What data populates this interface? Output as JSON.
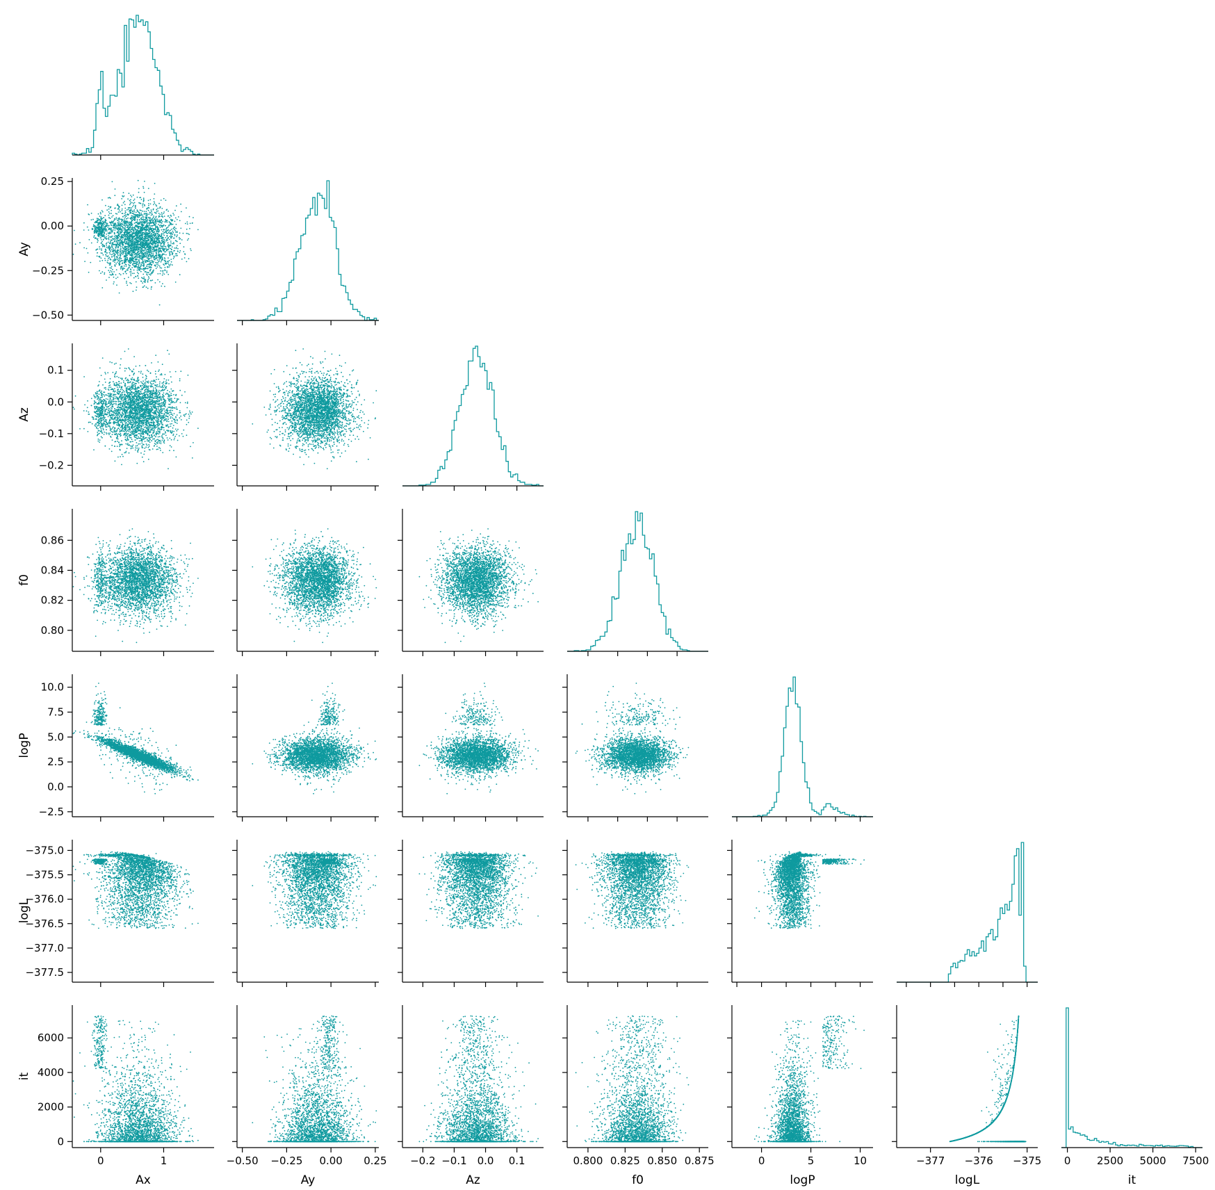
{
  "colors": {
    "accent": "#0f9a9f",
    "axis": "#000000",
    "background": "#ffffff"
  },
  "chart_data": {
    "type": "scatter",
    "layout": "corner",
    "title": "",
    "grid": false,
    "legend": "none",
    "variables": [
      {
        "name": "Ax",
        "ticks": [
          0,
          1
        ],
        "tick_labels": [
          "0",
          "1"
        ],
        "range": [
          -0.45,
          1.8
        ]
      },
      {
        "name": "Ay",
        "ticks": [
          -0.5,
          -0.25,
          0,
          0.25
        ],
        "tick_labels": [
          "−0.50",
          "−0.25",
          "0.00",
          "0.25"
        ],
        "range": [
          -0.53,
          0.27
        ]
      },
      {
        "name": "Az",
        "ticks": [
          -0.2,
          -0.1,
          0,
          0.1
        ],
        "tick_labels": [
          "−0.2",
          "−0.1",
          "0.0",
          "0.1"
        ],
        "range": [
          -0.265,
          0.185
        ]
      },
      {
        "name": "f0",
        "ticks": [
          0.8,
          0.82,
          0.84,
          0.86
        ],
        "tick_labels": [
          "0.80",
          "0.82",
          "0.84",
          "0.86"
        ],
        "range": [
          0.786,
          0.881
        ]
      },
      {
        "name": "logP",
        "ticks": [
          -2.5,
          0,
          2.5,
          5,
          7.5,
          10
        ],
        "tick_labels": [
          "−2.5",
          "0.0",
          "2.5",
          "5.0",
          "7.5",
          "10.0"
        ],
        "range": [
          -3.0,
          11.3
        ]
      },
      {
        "name": "logL",
        "ticks": [
          -377.5,
          -377,
          -376.5,
          -376,
          -375.5,
          -375
        ],
        "tick_labels": [
          "−377.5",
          "−377.0",
          "−376.5",
          "−376.0",
          "−375.5",
          "−375.0"
        ],
        "range": [
          -377.7,
          -374.78
        ]
      },
      {
        "name": "it",
        "ticks": [
          0,
          2000,
          4000,
          6000
        ],
        "tick_labels": [
          "0",
          "2000",
          "4000",
          "6000"
        ],
        "range": [
          -350,
          7900
        ]
      }
    ],
    "bottom_tick_overrides": {
      "f0": {
        "ticks": [
          0.8,
          0.825,
          0.85,
          0.875
        ],
        "tick_labels": [
          "0.800",
          "0.825",
          "0.850",
          "0.875"
        ]
      },
      "logP": {
        "ticks": [
          0,
          5,
          10
        ],
        "tick_labels": [
          "0",
          "5",
          "10"
        ]
      },
      "logL": {
        "ticks": [
          -377,
          -376,
          -375
        ],
        "tick_labels": [
          "−377",
          "−376",
          "−375"
        ]
      },
      "it": {
        "ticks": [
          0,
          2500,
          5000,
          7500
        ],
        "tick_labels": [
          "0",
          "2500",
          "5000",
          "7500"
        ]
      }
    },
    "distribution_summary": {
      "Ax": {
        "mean": 0.6,
        "sd": 0.3
      },
      "Ay": {
        "mean": -0.08,
        "sd": 0.1
      },
      "Az": {
        "mean": -0.03,
        "sd": 0.055
      },
      "f0": {
        "mean": 0.833,
        "sd": 0.011
      },
      "logP": {
        "mean": 2.8,
        "sd": 1.3
      },
      "logL": {
        "mode": -375.1,
        "max": -374.98
      },
      "it": {
        "min": 0,
        "max": 7400
      }
    },
    "n_points": 3200
  }
}
